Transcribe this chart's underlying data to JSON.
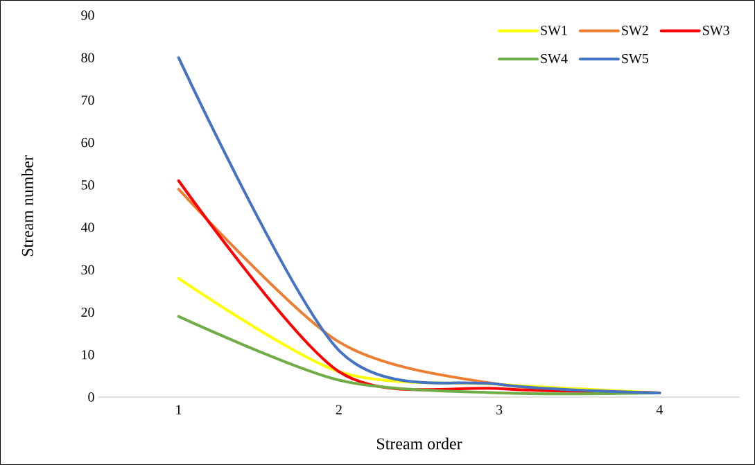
{
  "chart_data": {
    "type": "line",
    "xlabel": "Stream order",
    "ylabel": "Stream number",
    "categories": [
      "1",
      "2",
      "3",
      "4"
    ],
    "series": [
      {
        "name": "SW1",
        "color": "#ffff00",
        "values": [
          28,
          6,
          3,
          1
        ]
      },
      {
        "name": "SW2",
        "color": "#ed7d31",
        "values": [
          49,
          13,
          3,
          1
        ]
      },
      {
        "name": "SW3",
        "color": "#ff0000",
        "values": [
          51,
          6,
          2,
          1
        ]
      },
      {
        "name": "SW4",
        "color": "#70ad47",
        "values": [
          19,
          4,
          1,
          1
        ]
      },
      {
        "name": "SW5",
        "color": "#4472c4",
        "values": [
          80,
          11,
          3,
          1
        ]
      }
    ],
    "ylim": [
      0,
      90
    ],
    "yticks": [
      0,
      10,
      20,
      30,
      40,
      50,
      60,
      70,
      80,
      90
    ],
    "legend": "top right",
    "grid": false,
    "marker": "none",
    "line_style": "solid"
  }
}
